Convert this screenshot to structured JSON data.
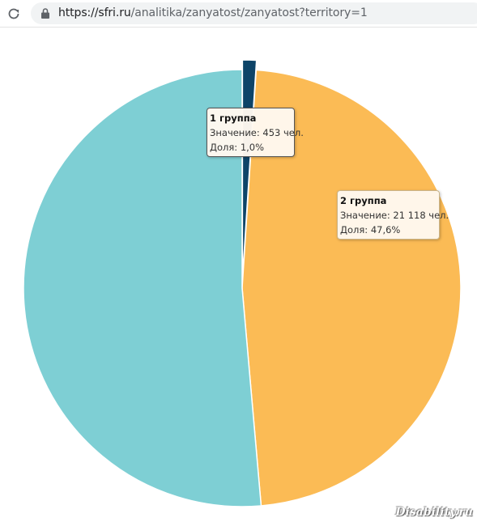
{
  "browser": {
    "url_host": "https://sfri.ru",
    "url_path": "/analitika/zanyatost/zanyatost?territory=1"
  },
  "chart_data": {
    "type": "pie",
    "title": "",
    "slices": [
      {
        "name": "1 группа",
        "value": 453,
        "share": 1.0,
        "color": "#0d4468"
      },
      {
        "name": "2 группа",
        "value": 21118,
        "share": 47.6,
        "color": "#fbbb55"
      },
      {
        "name": "",
        "value": 22800,
        "share": 51.4,
        "color": "#7ecfd4"
      }
    ]
  },
  "tooltips": [
    {
      "title": "1 группа",
      "value_line": "Значение: 453 чел.",
      "share_line": "Доля: 1,0%"
    },
    {
      "title": "2 группа",
      "value_line": "Значение: 21 118 чел.",
      "share_line": "Доля: 47,6%"
    }
  ],
  "watermark": "Disability.ru"
}
